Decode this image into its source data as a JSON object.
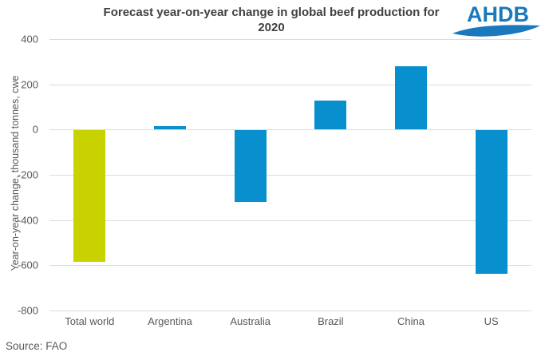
{
  "title": "Forecast year-on-year change in global beef production for 2020",
  "logo": {
    "text": "AHDB",
    "color": "#1B78BD"
  },
  "source": "Source: FAO",
  "chart_data": {
    "type": "bar",
    "title": "Forecast year-on-year change in global beef production for 2020",
    "categories": [
      "Total world",
      "Argentina",
      "Australia",
      "Brazil",
      "China",
      "US"
    ],
    "values": [
      -580,
      15,
      -315,
      130,
      280,
      -635
    ],
    "bar_colors": [
      "#C8D200",
      "#0890CE",
      "#0890CE",
      "#0890CE",
      "#0890CE",
      "#0890CE"
    ],
    "xlabel": "",
    "ylabel": "Year-on-year change, thousand tonnes, cwe",
    "ylim": [
      -800,
      400
    ],
    "yticks": [
      400,
      200,
      0,
      -200,
      -400,
      -600,
      -800
    ],
    "grid": true,
    "legend": false,
    "gridline_color": "#DCDCDC"
  }
}
